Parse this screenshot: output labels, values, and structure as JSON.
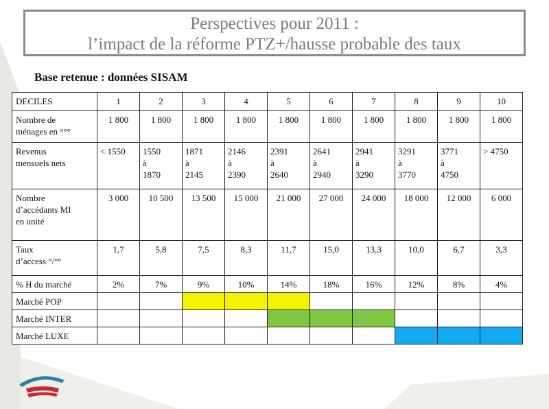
{
  "title": {
    "line1": "Perspectives pour 2011 :",
    "line2": "l’impact de la réforme PTZ+/hausse probable des taux"
  },
  "subtitle": "Base retenue : données SISAM",
  "table": {
    "header_label": "DECILES",
    "deciles": [
      "1",
      "2",
      "3",
      "4",
      "5",
      "6",
      "7",
      "8",
      "9",
      "10"
    ],
    "menages": {
      "label_line1": "Nombre de",
      "label_line2": "ménages en °°°",
      "values": [
        "1 800",
        "1 800",
        "1 800",
        "1 800",
        "1 800",
        "1 800",
        "1 800",
        "1 800",
        "1 800",
        "1 800"
      ]
    },
    "revenus": {
      "label_line1": "Revenus",
      "label_line2": "mensuels nets",
      "values": [
        [
          "< 1550"
        ],
        [
          "1550",
          "à",
          "1870"
        ],
        [
          "1871",
          "à",
          "2145"
        ],
        [
          "2146",
          "à",
          "2390"
        ],
        [
          "2391",
          "à",
          "2640"
        ],
        [
          "2641",
          "à",
          "2940"
        ],
        [
          "2941",
          "à",
          "3290"
        ],
        [
          "3291",
          "à",
          "3770"
        ],
        [
          "3771",
          "à",
          "4750"
        ],
        [
          "> 4750"
        ]
      ]
    },
    "accedants": {
      "label_line1": "Nombre",
      "label_line2": "d’accédants MI",
      "label_line3": "en unité",
      "values": [
        "3 000",
        "10 500",
        "13 500",
        "15 000",
        "21 000",
        "27 000",
        "24 000",
        "18 000",
        "12 000",
        "6 000"
      ]
    },
    "taux": {
      "label_line1": "Taux",
      "label_line2": "d’access °/°°",
      "values": [
        "1,7",
        "5,8",
        "7,5",
        "8,3",
        "11,7",
        "15,0",
        "13,3",
        "10,0",
        "6,7",
        "3,3"
      ]
    },
    "pct_h": {
      "label": "% H du marché",
      "values": [
        "2%",
        "7%",
        "9%",
        "10%",
        "14%",
        "18%",
        "16%",
        "12%",
        "8%",
        "4%"
      ]
    },
    "markets": [
      {
        "label": "Marché  POP",
        "color": "#f3f300",
        "active": [
          false,
          false,
          true,
          true,
          true,
          false,
          false,
          false,
          false,
          false
        ]
      },
      {
        "label": "Marché INTER",
        "color": "#7dc642",
        "active": [
          false,
          false,
          false,
          false,
          true,
          true,
          true,
          false,
          false,
          false
        ]
      },
      {
        "label": "Marché LUXE",
        "color": "#12aaf0",
        "active": [
          false,
          false,
          false,
          false,
          false,
          false,
          false,
          true,
          true,
          true
        ]
      }
    ]
  },
  "logo_icon": "house-roof-logo-icon"
}
